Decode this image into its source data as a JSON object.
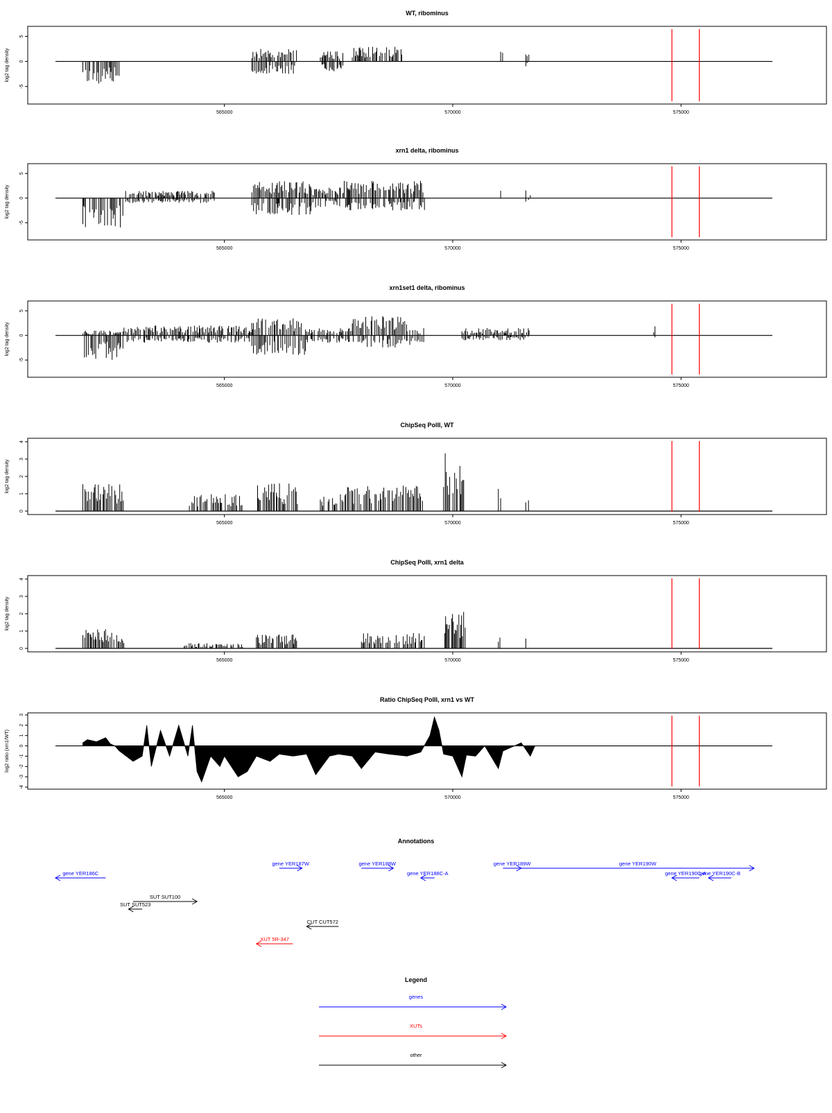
{
  "colors": {
    "genes": "#0000ff",
    "xuts": "#ff0000",
    "other": "#000000",
    "marker": "#ff0000",
    "bars": "#000000",
    "frame": "#000000"
  },
  "chart_data": [
    {
      "type": "bar",
      "title": "WT, ribominus",
      "ylabel": "log2 tag density",
      "xlim": [
        561300,
        577000
      ],
      "ylim": [
        -8.5,
        7
      ],
      "xticks": [
        565000,
        570000,
        575000
      ],
      "xtick_labels": [
        "565000",
        "570000",
        "575000"
      ],
      "yticks": [
        -5,
        0,
        5
      ],
      "ytick_labels": [
        "-5",
        "0",
        "5"
      ],
      "markers": [
        574800,
        575400
      ],
      "segments": [
        {
          "x0": 561900,
          "x1": 562700,
          "lo": -4.5,
          "hi": 0
        },
        {
          "x0": 565600,
          "x1": 566600,
          "lo": -2.5,
          "hi": 2.5
        },
        {
          "x0": 567100,
          "x1": 567600,
          "lo": -2.0,
          "hi": 2.0
        },
        {
          "x0": 567800,
          "x1": 568900,
          "lo": 0,
          "hi": 3.0
        },
        {
          "x0": 571050,
          "x1": 571100,
          "lo": 0,
          "hi": 2.0
        },
        {
          "x0": 571600,
          "x1": 571700,
          "lo": -1.0,
          "hi": 2.0
        }
      ]
    },
    {
      "type": "bar",
      "title": "xrn1 delta, ribominus",
      "ylabel": "log2 tag density",
      "xlim": [
        561300,
        577000
      ],
      "ylim": [
        -8.5,
        7
      ],
      "xticks": [
        565000,
        570000,
        575000
      ],
      "xtick_labels": [
        "565000",
        "570000",
        "575000"
      ],
      "yticks": [
        -5,
        0,
        5
      ],
      "ytick_labels": [
        "-5",
        "0",
        "5"
      ],
      "markers": [
        574800,
        575400
      ],
      "segments": [
        {
          "x0": 561900,
          "x1": 562800,
          "lo": -6.0,
          "hi": 0
        },
        {
          "x0": 562800,
          "x1": 564800,
          "lo": -1.0,
          "hi": 1.5
        },
        {
          "x0": 565600,
          "x1": 566900,
          "lo": -3.5,
          "hi": 3.5
        },
        {
          "x0": 566900,
          "x1": 567600,
          "lo": -2.0,
          "hi": 2.5
        },
        {
          "x0": 567600,
          "x1": 569400,
          "lo": -2.5,
          "hi": 3.5
        },
        {
          "x0": 571050,
          "x1": 571100,
          "lo": 0,
          "hi": 3.0
        },
        {
          "x0": 571600,
          "x1": 571700,
          "lo": -1.0,
          "hi": 2.0
        }
      ]
    },
    {
      "type": "bar",
      "title": "xrn1set1 delta, ribominus",
      "ylabel": "log2 tag density",
      "xlim": [
        561300,
        577000
      ],
      "ylim": [
        -8.5,
        7
      ],
      "xticks": [
        565000,
        570000,
        575000
      ],
      "xtick_labels": [
        "565000",
        "570000",
        "575000"
      ],
      "yticks": [
        -5,
        0,
        5
      ],
      "ytick_labels": [
        "-5",
        "0",
        "5"
      ],
      "markers": [
        574800,
        575400
      ],
      "segments": [
        {
          "x0": 561900,
          "x1": 562800,
          "lo": -5.0,
          "hi": 1.0
        },
        {
          "x0": 562800,
          "x1": 565600,
          "lo": -1.5,
          "hi": 2.0
        },
        {
          "x0": 565600,
          "x1": 566800,
          "lo": -4.0,
          "hi": 3.5
        },
        {
          "x0": 566800,
          "x1": 567800,
          "lo": -1.5,
          "hi": 1.5
        },
        {
          "x0": 567800,
          "x1": 569000,
          "lo": -2.5,
          "hi": 4.0
        },
        {
          "x0": 569000,
          "x1": 569400,
          "lo": -2.0,
          "hi": 1.5
        },
        {
          "x0": 570200,
          "x1": 571700,
          "lo": -1.0,
          "hi": 1.5
        },
        {
          "x0": 574400,
          "x1": 574450,
          "lo": -1.0,
          "hi": 2.0
        }
      ]
    },
    {
      "type": "bar",
      "title": "ChipSeq PolII, WT",
      "ylabel": "log2 tag density",
      "xlim": [
        561300,
        577000
      ],
      "ylim": [
        -0.2,
        4.2
      ],
      "xticks": [
        565000,
        570000,
        575000
      ],
      "xtick_labels": [
        "565000",
        "570000",
        "575000"
      ],
      "yticks": [
        0,
        1,
        2,
        3,
        4
      ],
      "ytick_labels": [
        "0",
        "1",
        "2",
        "3",
        "4"
      ],
      "markers": [
        574800,
        575400
      ],
      "segments": [
        {
          "x0": 561900,
          "x1": 562800,
          "lo": 0,
          "hi": 1.6
        },
        {
          "x0": 564200,
          "x1": 565400,
          "lo": 0,
          "hi": 1.0
        },
        {
          "x0": 565700,
          "x1": 566600,
          "lo": 0,
          "hi": 1.6
        },
        {
          "x0": 567100,
          "x1": 567600,
          "lo": 0,
          "hi": 1.0
        },
        {
          "x0": 567600,
          "x1": 569400,
          "lo": 0,
          "hi": 1.5
        },
        {
          "x0": 569800,
          "x1": 570300,
          "lo": 0,
          "hi": 3.4
        },
        {
          "x0": 571000,
          "x1": 571050,
          "lo": 0,
          "hi": 1.6
        },
        {
          "x0": 571600,
          "x1": 571700,
          "lo": 0,
          "hi": 2.0
        }
      ]
    },
    {
      "type": "bar",
      "title": "ChipSeq PolII, xrn1 delta",
      "ylabel": "log2 tag density",
      "xlim": [
        561300,
        577000
      ],
      "ylim": [
        -0.2,
        4.2
      ],
      "xticks": [
        565000,
        570000,
        575000
      ],
      "xtick_labels": [
        "565000",
        "570000",
        "575000"
      ],
      "yticks": [
        0,
        1,
        2,
        3,
        4
      ],
      "ytick_labels": [
        "0",
        "1",
        "2",
        "3",
        "4"
      ],
      "markers": [
        574800,
        575400
      ],
      "segments": [
        {
          "x0": 561900,
          "x1": 562800,
          "lo": 0,
          "hi": 1.2
        },
        {
          "x0": 564100,
          "x1": 565400,
          "lo": 0,
          "hi": 0.3
        },
        {
          "x0": 565700,
          "x1": 566600,
          "lo": 0,
          "hi": 0.8
        },
        {
          "x0": 568000,
          "x1": 569400,
          "lo": 0,
          "hi": 0.9
        },
        {
          "x0": 569800,
          "x1": 570300,
          "lo": 0,
          "hi": 2.2
        },
        {
          "x0": 571000,
          "x1": 571050,
          "lo": 0,
          "hi": 0.8
        },
        {
          "x0": 571600,
          "x1": 571700,
          "lo": 0,
          "hi": 1.0
        }
      ]
    },
    {
      "type": "area",
      "title": "Ratio ChipSeq PolII, xrn1 vs WT",
      "ylabel": "log2 ratio (xrn1/WT)",
      "xlim": [
        561300,
        577000
      ],
      "ylim": [
        -4.2,
        3.2
      ],
      "xticks": [
        565000,
        570000,
        575000
      ],
      "xtick_labels": [
        "565000",
        "570000",
        "575000"
      ],
      "yticks": [
        -4,
        -3,
        -2,
        -1,
        0,
        1,
        2,
        3
      ],
      "ytick_labels": [
        "-4",
        "-3",
        "-2",
        "-1",
        "0",
        "1",
        "2",
        "3"
      ],
      "markers": [
        574800,
        575400
      ],
      "x": [
        561900,
        562000,
        562200,
        562400,
        562500,
        562600,
        562700,
        563000,
        563200,
        563300,
        563400,
        563600,
        563800,
        564000,
        564200,
        564300,
        564400,
        564500,
        564700,
        564900,
        565000,
        565300,
        565500,
        565700,
        566000,
        566200,
        566500,
        566800,
        567000,
        567300,
        567500,
        567800,
        568000,
        568300,
        568600,
        569000,
        569300,
        569500,
        569600,
        569700,
        569800,
        570000,
        570200,
        570300,
        570500,
        570700,
        571000,
        571100,
        571500,
        571700,
        571800,
        577000
      ],
      "y": [
        0.3,
        0.6,
        0.4,
        0.8,
        0.2,
        0.0,
        -0.5,
        -1.5,
        -1.0,
        2.0,
        -2.0,
        1.5,
        -1.0,
        2.0,
        -1.0,
        2.0,
        -2.5,
        -3.5,
        -1.0,
        -2.0,
        -1.0,
        -3.0,
        -2.5,
        -1.0,
        -1.5,
        -0.8,
        -1.0,
        -0.8,
        -2.8,
        -1.0,
        -0.8,
        -1.0,
        -2.2,
        -0.6,
        -0.8,
        -1.0,
        -0.6,
        1.0,
        2.8,
        1.5,
        -0.8,
        -1.0,
        -3.0,
        -0.9,
        -1.0,
        0,
        -2.2,
        -0.5,
        0.3,
        -1.0,
        0,
        0
      ]
    }
  ],
  "annotations": {
    "title": "Annotations",
    "items": [
      {
        "label": "gene YER186C",
        "kind": "genes",
        "start": 562400,
        "end": 561300,
        "row": 1
      },
      {
        "label": "gene YER187W",
        "kind": "genes",
        "start": 566200,
        "end": 566700,
        "row": 0
      },
      {
        "label": "gene YER188W",
        "kind": "genes",
        "start": 568000,
        "end": 568700,
        "row": 0
      },
      {
        "label": "gene YER188C-A",
        "kind": "genes",
        "start": 569600,
        "end": 569300,
        "row": 1
      },
      {
        "label": "gene YER189W",
        "kind": "genes",
        "start": 571100,
        "end": 571500,
        "row": 0
      },
      {
        "label": "gene YER190W",
        "kind": "genes",
        "start": 571500,
        "end": 576600,
        "row": 0
      },
      {
        "label": "gene YER190C-A",
        "kind": "genes",
        "start": 575400,
        "end": 574800,
        "row": 1
      },
      {
        "label": "gene YER190C-B",
        "kind": "genes",
        "start": 576100,
        "end": 575600,
        "row": 1
      },
      {
        "label": "SUT SUT100",
        "kind": "other",
        "start": 563000,
        "end": 564400,
        "row": 2
      },
      {
        "label": "SUT SUT523",
        "kind": "other",
        "start": 563200,
        "end": 562900,
        "row": 3
      },
      {
        "label": "CUT CUT572",
        "kind": "other",
        "start": 567500,
        "end": 566800,
        "row": 4
      },
      {
        "label": "XUT 5R-347",
        "kind": "xuts",
        "start": 566500,
        "end": 565700,
        "row": 5
      }
    ]
  },
  "legend": {
    "title": "Legend",
    "items": [
      {
        "label": "genes",
        "kind": "genes"
      },
      {
        "label": "XUTs",
        "kind": "xuts"
      },
      {
        "label": "other",
        "kind": "other"
      }
    ]
  }
}
